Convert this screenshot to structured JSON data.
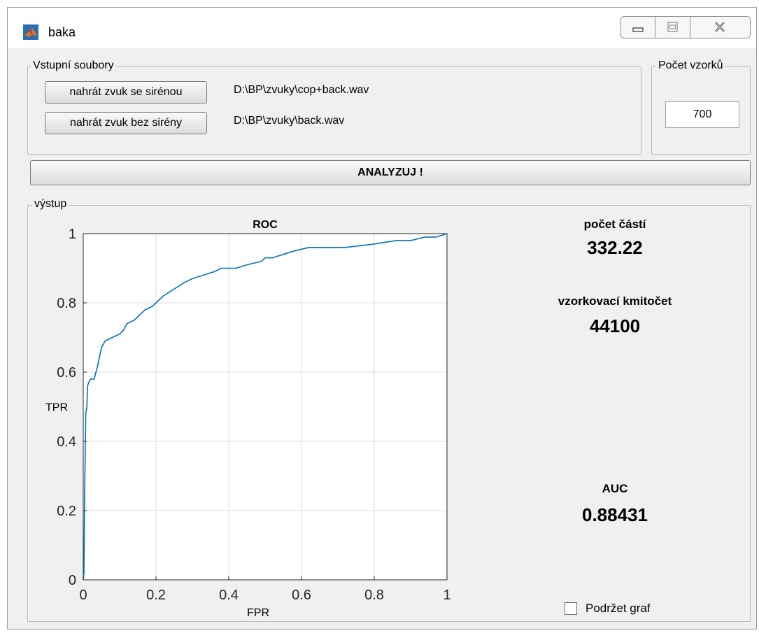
{
  "window": {
    "title": "baka",
    "icon": "matlab-icon",
    "controls": [
      "minimize-icon",
      "maximize-icon",
      "close-icon"
    ]
  },
  "inputs_group": {
    "title": "Vstupní soubory",
    "load_siren_label": "nahrát zvuk se sirénou",
    "load_siren_path": "D:\\BP\\zvuky\\cop+back.wav",
    "load_nosiren_label": "nahrát zvuk bez sirény",
    "load_nosiren_path": "D:\\BP\\zvuky\\back.wav"
  },
  "samples_group": {
    "title": "Počet vzorků",
    "value": "700"
  },
  "analyze_label": "ANALYZUJ !",
  "output_group": {
    "title": "výstup",
    "parts_label": "počet částí",
    "parts_value": "332.22",
    "fs_label": "vzorkovací kmitočet",
    "fs_value": "44100",
    "auc_label": "AUC",
    "auc_value": "0.88431",
    "hold_label": "Podržet graf",
    "hold_checked": false
  },
  "chart_data": {
    "type": "line",
    "title": "ROC",
    "xlabel": "FPR",
    "ylabel": "TPR",
    "xlim": [
      0,
      1
    ],
    "ylim": [
      0,
      1
    ],
    "xticks": [
      "0",
      "0.2",
      "0.4",
      "0.6",
      "0.8",
      "1"
    ],
    "yticks": [
      "0",
      "0.2",
      "0.4",
      "0.6",
      "0.8",
      "1"
    ],
    "grid": true,
    "line_color": "#0072bd",
    "series": [
      {
        "x": [
          0,
          0.002,
          0.004,
          0.005,
          0.007,
          0.01,
          0.012,
          0.015,
          0.02,
          0.03,
          0.04,
          0.05,
          0.06,
          0.08,
          0.1,
          0.11,
          0.12,
          0.14,
          0.15,
          0.17,
          0.19,
          0.2,
          0.22,
          0.25,
          0.28,
          0.3,
          0.33,
          0.36,
          0.38,
          0.42,
          0.45,
          0.49,
          0.5,
          0.52,
          0.55,
          0.58,
          0.62,
          0.66,
          0.72,
          0.8,
          0.86,
          0.9,
          0.94,
          0.97,
          1.0
        ],
        "y": [
          0,
          0.02,
          0.27,
          0.33,
          0.48,
          0.5,
          0.56,
          0.57,
          0.58,
          0.58,
          0.62,
          0.67,
          0.69,
          0.7,
          0.71,
          0.72,
          0.74,
          0.75,
          0.76,
          0.78,
          0.79,
          0.8,
          0.82,
          0.84,
          0.86,
          0.87,
          0.88,
          0.89,
          0.9,
          0.9,
          0.91,
          0.92,
          0.93,
          0.93,
          0.94,
          0.95,
          0.96,
          0.96,
          0.96,
          0.97,
          0.98,
          0.98,
          0.99,
          0.99,
          1.0
        ]
      }
    ]
  }
}
